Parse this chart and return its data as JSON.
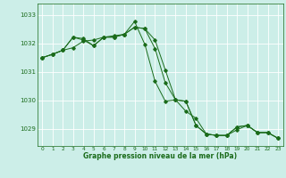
{
  "bg_color": "#cceee8",
  "grid_color": "#ffffff",
  "line_color": "#1a6b1a",
  "xlabel": "Graphe pression niveau de la mer (hPa)",
  "ylim": [
    1028.4,
    1033.4
  ],
  "xlim": [
    -0.5,
    23.5
  ],
  "yticks": [
    1029,
    1030,
    1031,
    1032,
    1033
  ],
  "xticks": [
    0,
    1,
    2,
    3,
    4,
    5,
    6,
    7,
    8,
    9,
    10,
    11,
    12,
    13,
    14,
    15,
    16,
    17,
    18,
    19,
    20,
    21,
    22,
    23
  ],
  "series1": [
    1031.5,
    1031.62,
    1031.76,
    1031.85,
    1032.08,
    1032.12,
    1032.22,
    1032.27,
    1032.32,
    1032.57,
    1032.52,
    1031.82,
    1030.62,
    1030.02,
    1029.97,
    1029.12,
    1028.82,
    1028.77,
    1028.77,
    1029.07,
    1029.12,
    1028.87,
    1028.87,
    1028.67
  ],
  "series2": [
    1031.5,
    1031.62,
    1031.76,
    1032.22,
    1032.12,
    1031.92,
    1032.22,
    1032.22,
    1032.32,
    1032.77,
    1031.97,
    1030.67,
    1029.97,
    1030.02,
    1029.97,
    1029.12,
    1028.82,
    1028.77,
    1028.77,
    1029.07,
    1029.12,
    1028.87,
    1028.87,
    1028.67
  ],
  "series3": [
    1031.5,
    1031.62,
    1031.76,
    1032.22,
    1032.17,
    1031.92,
    1032.22,
    1032.22,
    1032.32,
    1032.57,
    1032.52,
    1032.12,
    1031.07,
    1030.02,
    1029.62,
    1029.37,
    1028.82,
    1028.77,
    1028.77,
    1028.97,
    1029.12,
    1028.87,
    1028.87,
    1028.67
  ]
}
